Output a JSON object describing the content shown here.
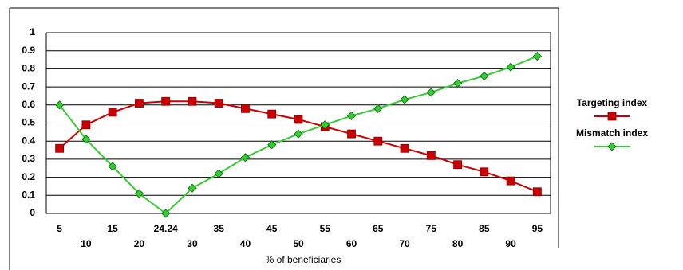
{
  "chart_data": {
    "type": "line",
    "x_label": "% of beneficiaries",
    "categories": [
      5,
      10,
      15,
      20,
      24.24,
      30,
      35,
      40,
      45,
      50,
      55,
      60,
      65,
      70,
      75,
      80,
      85,
      90,
      95
    ],
    "series": [
      {
        "name": "Targeting index",
        "color": "#cc0000",
        "marker": "square",
        "values": [
          0.36,
          0.49,
          0.56,
          0.61,
          0.62,
          0.62,
          0.61,
          0.58,
          0.55,
          0.52,
          0.48,
          0.44,
          0.4,
          0.36,
          0.32,
          0.27,
          0.23,
          0.18,
          0.12
        ]
      },
      {
        "name": "Mismatch index",
        "color": "#33cc33",
        "marker": "diamond",
        "values": [
          0.6,
          0.41,
          0.26,
          0.11,
          0.0,
          0.14,
          0.22,
          0.31,
          0.38,
          0.44,
          0.49,
          0.54,
          0.58,
          0.63,
          0.67,
          0.72,
          0.76,
          0.81,
          0.87
        ]
      }
    ],
    "ylim": [
      0,
      1
    ],
    "yticks": [
      0,
      0.1,
      0.2,
      0.3,
      0.4,
      0.5,
      0.6,
      0.7,
      0.8,
      0.9,
      1
    ],
    "grid": true,
    "legend": "right"
  }
}
